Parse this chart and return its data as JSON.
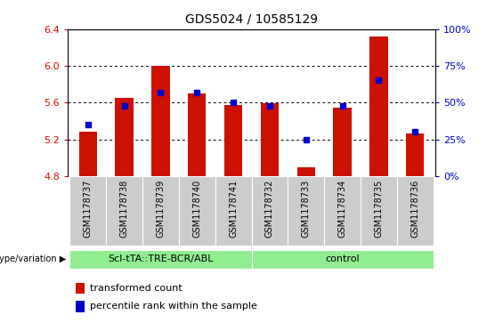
{
  "title": "GDS5024 / 10585129",
  "samples": [
    "GSM1178737",
    "GSM1178738",
    "GSM1178739",
    "GSM1178740",
    "GSM1178741",
    "GSM1178732",
    "GSM1178733",
    "GSM1178734",
    "GSM1178735",
    "GSM1178736"
  ],
  "transformed_count": [
    5.28,
    5.65,
    6.0,
    5.7,
    5.57,
    5.59,
    4.9,
    5.54,
    6.32,
    5.26
  ],
  "percentile_rank": [
    35,
    48,
    57,
    57,
    50,
    48,
    25,
    48,
    65,
    30
  ],
  "ylim_left": [
    4.8,
    6.4
  ],
  "ylim_right": [
    0,
    100
  ],
  "yticks_left": [
    4.8,
    5.2,
    5.6,
    6.0,
    6.4
  ],
  "yticks_right": [
    0,
    25,
    50,
    75,
    100
  ],
  "bar_color": "#CC1100",
  "percentile_color": "#0000CC",
  "bar_baseline": 4.8,
  "groups": [
    {
      "label": "Scl-tTA::TRE-BCR/ABL",
      "start": 0,
      "end": 5,
      "color": "#90EE90"
    },
    {
      "label": "control",
      "start": 5,
      "end": 10,
      "color": "#90EE90"
    }
  ],
  "group_label_prefix": "genotype/variation",
  "legend_items": [
    {
      "label": "transformed count",
      "color": "#CC1100"
    },
    {
      "label": "percentile rank within the sample",
      "color": "#0000CC"
    }
  ],
  "grid_yticks": [
    5.2,
    5.6,
    6.0
  ],
  "bar_width": 0.5,
  "bg_color": "#CCCCCC",
  "tick_bg_color": "#CCCCCC"
}
